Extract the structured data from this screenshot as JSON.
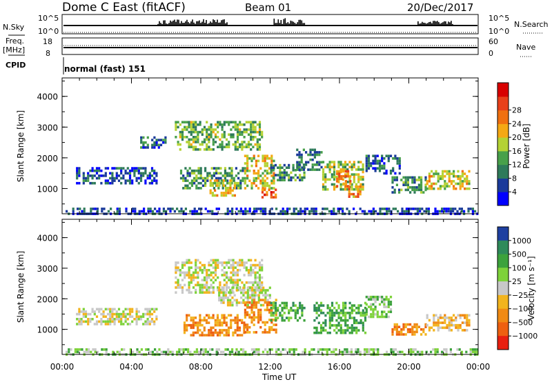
{
  "header": {
    "title": "Dome C East (fitACF)",
    "beam": "Beam 01",
    "date": "20/Dec/2017"
  },
  "top_panels": {
    "nsky": {
      "label": "N.Sky",
      "left_ticks": [
        "10^5",
        "10^0"
      ],
      "right_label": "N.Search",
      "right_ticks": [
        "10^5",
        "10^0"
      ],
      "blocks": [
        {
          "start": 5.5,
          "end": 9.5,
          "level": 0.8
        },
        {
          "start": 12.2,
          "end": 14.0,
          "level": 1.0
        },
        {
          "start": 20.5,
          "end": 22.5,
          "level": 0.55
        }
      ]
    },
    "freq": {
      "label_line1": "Freq.",
      "label_line2": "[MHz]",
      "left_ticks": [
        "18",
        "8"
      ],
      "right_label": "Nave",
      "right_ticks": [
        "60",
        "0"
      ]
    },
    "cpid": {
      "label": "CPID",
      "value": "normal (fast) 151"
    }
  },
  "chart_data": [
    {
      "type": "heatmap",
      "panel": "power",
      "ylabel": "Slant Range [km]",
      "ylim": [
        180,
        4600
      ],
      "yticks": [
        1000,
        2000,
        3000,
        4000
      ],
      "xlim": [
        0,
        24
      ],
      "xticks": [
        "00:00",
        "04:00",
        "08:00",
        "12:00",
        "16:00",
        "20:00",
        "00:00"
      ],
      "colorbar": {
        "label": "Power [dB]",
        "range": [
          0,
          32
        ],
        "ticks": [
          "4",
          "8",
          "12",
          "16",
          "20",
          "24",
          "28"
        ],
        "colors": [
          "#0000ff",
          "#1a3a9a",
          "#2e7a5a",
          "#48a04a",
          "#b4d234",
          "#f5a814",
          "#f07010",
          "#e8401a",
          "#d80000"
        ]
      },
      "regions": [
        {
          "t0": 0.2,
          "t1": 24.0,
          "r0": 200,
          "r1": 380,
          "level": 0.12
        },
        {
          "t0": 0.8,
          "t1": 5.5,
          "r0": 1150,
          "r1": 1700,
          "level": 0.15
        },
        {
          "t0": 4.5,
          "t1": 6.0,
          "r0": 2300,
          "r1": 2700,
          "level": 0.2
        },
        {
          "t0": 6.5,
          "t1": 11.5,
          "r0": 2300,
          "r1": 3200,
          "level": 0.4
        },
        {
          "t0": 6.8,
          "t1": 10.5,
          "r0": 1000,
          "r1": 1700,
          "level": 0.3
        },
        {
          "t0": 8.5,
          "t1": 10.0,
          "r0": 800,
          "r1": 1300,
          "level": 0.55
        },
        {
          "t0": 10.5,
          "t1": 12.2,
          "r0": 1000,
          "r1": 2100,
          "level": 0.55
        },
        {
          "t0": 11.5,
          "t1": 12.3,
          "r0": 700,
          "r1": 1000,
          "level": 0.8
        },
        {
          "t0": 12.0,
          "t1": 14.0,
          "r0": 1300,
          "r1": 1800,
          "level": 0.3
        },
        {
          "t0": 13.5,
          "t1": 15.0,
          "r0": 1600,
          "r1": 2300,
          "level": 0.25
        },
        {
          "t0": 15.0,
          "t1": 17.3,
          "r0": 1000,
          "r1": 1900,
          "level": 0.45
        },
        {
          "t0": 15.8,
          "t1": 16.6,
          "r0": 1100,
          "r1": 1600,
          "level": 0.75
        },
        {
          "t0": 16.5,
          "t1": 17.2,
          "r0": 700,
          "r1": 1100,
          "level": 0.7
        },
        {
          "t0": 17.5,
          "t1": 19.5,
          "r0": 1500,
          "r1": 2100,
          "level": 0.2
        },
        {
          "t0": 19.0,
          "t1": 21.0,
          "r0": 900,
          "r1": 1400,
          "level": 0.3
        },
        {
          "t0": 21.0,
          "t1": 23.5,
          "r0": 1000,
          "r1": 1600,
          "level": 0.55
        }
      ]
    },
    {
      "type": "heatmap",
      "panel": "velocity",
      "ylabel": "Slant Range [km]",
      "ylim": [
        180,
        4600
      ],
      "yticks": [
        1000,
        2000,
        3000,
        4000
      ],
      "xlim": [
        0,
        24
      ],
      "xlabel": "Time UT",
      "xticks": [
        "00:00",
        "04:00",
        "08:00",
        "12:00",
        "16:00",
        "20:00",
        "00:00"
      ],
      "colorbar": {
        "label": "Velocity [m s⁻¹]",
        "ticks": [
          "1000",
          "500",
          "100",
          "25",
          "−25",
          "−100",
          "−500",
          "−1000"
        ],
        "colors": [
          "#1e3fa0",
          "#2e8a5a",
          "#3ca23c",
          "#7ed23a",
          "#c8c8c8",
          "#f2b41e",
          "#f08a14",
          "#ee6010",
          "#e82010"
        ]
      },
      "regions": [
        {
          "t0": 0.2,
          "t1": 24.0,
          "r0": 200,
          "r1": 380,
          "class": 3
        },
        {
          "t0": 0.8,
          "t1": 5.5,
          "r0": 1150,
          "r1": 1700,
          "class": 4
        },
        {
          "t0": 6.5,
          "t1": 11.5,
          "r0": 2200,
          "r1": 3300,
          "class": 4
        },
        {
          "t0": 9.0,
          "t1": 12.0,
          "r0": 1800,
          "r1": 2400,
          "class": 4
        },
        {
          "t0": 7.0,
          "t1": 10.5,
          "r0": 800,
          "r1": 1500,
          "class": 6
        },
        {
          "t0": 10.5,
          "t1": 12.3,
          "r0": 900,
          "r1": 2000,
          "class": 6
        },
        {
          "t0": 12.0,
          "t1": 14.0,
          "r0": 1300,
          "r1": 1900,
          "class": 2
        },
        {
          "t0": 14.5,
          "t1": 17.5,
          "r0": 900,
          "r1": 1900,
          "class": 2
        },
        {
          "t0": 17.5,
          "t1": 19.0,
          "r0": 1400,
          "r1": 2100,
          "class": 3
        },
        {
          "t0": 19.0,
          "t1": 21.0,
          "r0": 850,
          "r1": 1200,
          "class": 6
        },
        {
          "t0": 21.0,
          "t1": 23.5,
          "r0": 1000,
          "r1": 1500,
          "class": 5
        }
      ]
    }
  ]
}
